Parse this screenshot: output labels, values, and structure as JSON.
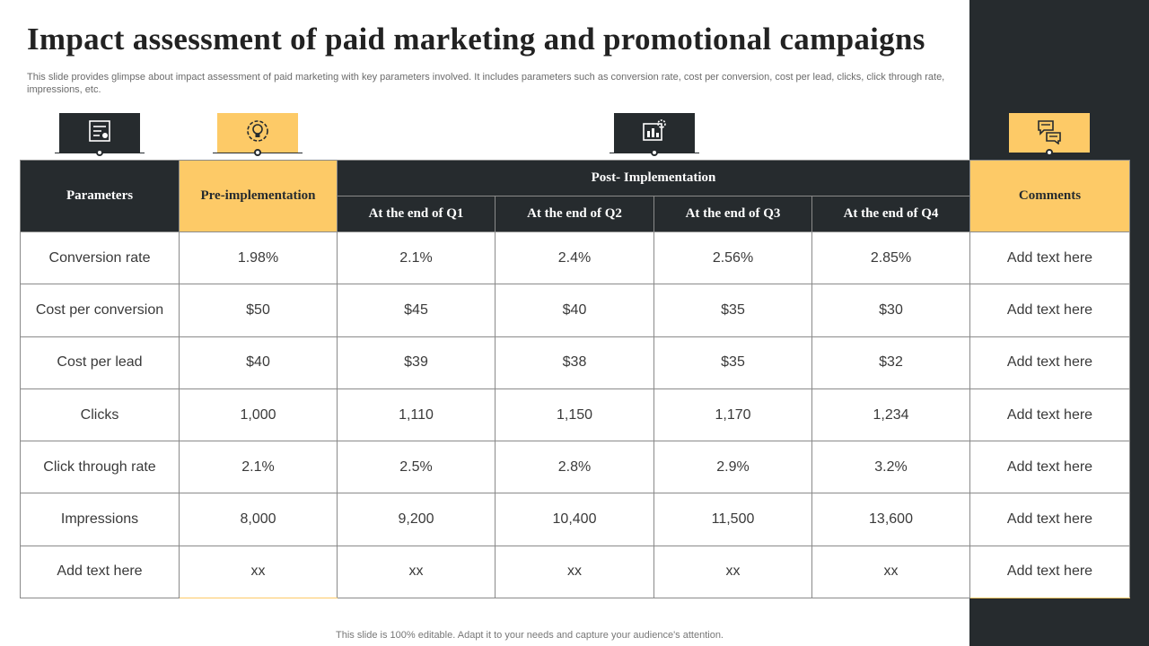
{
  "slide": {
    "title": "Impact assessment of paid marketing and promotional campaigns",
    "subtitle": "This slide provides glimpse about impact assessment of paid marketing with key parameters involved. It includes parameters such as conversion rate, cost per conversion, cost per lead, clicks, click through rate, impressions, etc.",
    "footer": "This slide is 100% editable. Adapt it to your needs and capture your audience's attention."
  },
  "icons": {
    "parameters": "settings-document-icon",
    "pre_implementation": "idea-bulb-gear-icon",
    "post_implementation": "dashboard-gear-icon",
    "comments": "chat-bubbles-icon"
  },
  "colors": {
    "dark": "#262b2e",
    "gold": "#fdca67"
  },
  "table": {
    "headers": {
      "parameters": "Parameters",
      "pre": "Pre-implementation",
      "post": "Post- Implementation",
      "q1": "At the end of Q1",
      "q2": "At the end of Q2",
      "q3": "At the end of Q3",
      "q4": "At the end of Q4",
      "comments": "Comments"
    },
    "rows": [
      [
        "Conversion  rate",
        "1.98%",
        "2.1%",
        "2.4%",
        "2.56%",
        "2.85%",
        "Add text here"
      ],
      [
        "Cost per conversion",
        "$50",
        "$45",
        "$40",
        "$35",
        "$30",
        "Add text here"
      ],
      [
        "Cost per lead",
        "$40",
        "$39",
        "$38",
        "$35",
        "$32",
        "Add text here"
      ],
      [
        "Clicks",
        "1,000",
        "1,110",
        "1,150",
        "1,170",
        "1,234",
        "Add text here"
      ],
      [
        "Click through  rate",
        "2.1%",
        "2.5%",
        "2.8%",
        "2.9%",
        "3.2%",
        "Add text here"
      ],
      [
        "Impressions",
        "8,000",
        "9,200",
        "10,400",
        "11,500",
        "13,600",
        "Add text here"
      ],
      [
        "Add text here",
        "xx",
        "xx",
        "xx",
        "xx",
        "xx",
        "Add text here"
      ]
    ]
  }
}
